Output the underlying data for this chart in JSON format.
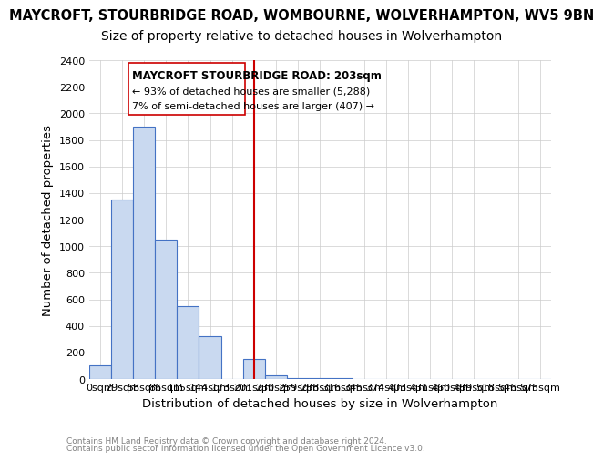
{
  "title": "MAYCROFT, STOURBRIDGE ROAD, WOMBOURNE, WOLVERHAMPTON, WV5 9BN",
  "subtitle": "Size of property relative to detached houses in Wolverhampton",
  "xlabel": "Distribution of detached houses by size in Wolverhampton",
  "ylabel": "Number of detached properties",
  "footer_line1": "Contains HM Land Registry data © Crown copyright and database right 2024.",
  "footer_line2": "Contains public sector information licensed under the Open Government Licence v3.0.",
  "bin_labels": [
    "0sqm",
    "29sqm",
    "58sqm",
    "86sqm",
    "115sqm",
    "144sqm",
    "173sqm",
    "201sqm",
    "230sqm",
    "259sqm",
    "288sqm",
    "316sqm",
    "345sqm",
    "374sqm",
    "403sqm",
    "431sqm",
    "460sqm",
    "489sqm",
    "518sqm",
    "546sqm",
    "575sqm"
  ],
  "bar_heights": [
    100,
    1350,
    1900,
    1050,
    550,
    320,
    0,
    150,
    30,
    10,
    5,
    5,
    2,
    2,
    1,
    1,
    1,
    1,
    1,
    1,
    0
  ],
  "bar_color": "#c9d9f0",
  "bar_edge_color": "#4472c4",
  "red_line_bin": 7,
  "annotation_text_line1": "MAYCROFT STOURBRIDGE ROAD: 203sqm",
  "annotation_text_line2": "← 93% of detached houses are smaller (5,288)",
  "annotation_text_line3": "7% of semi-detached houses are larger (407) →",
  "annotation_box_color": "#ffffff",
  "annotation_border_color": "#cc0000",
  "red_line_color": "#cc0000",
  "ylim": [
    0,
    2400
  ],
  "yticks": [
    0,
    200,
    400,
    600,
    800,
    1000,
    1200,
    1400,
    1600,
    1800,
    2000,
    2200,
    2400
  ],
  "background_color": "#ffffff",
  "grid_color": "#cccccc",
  "title_fontsize": 10.5,
  "subtitle_fontsize": 10,
  "axis_label_fontsize": 9.5,
  "tick_fontsize": 8,
  "annotation_fontsize": 8.5
}
